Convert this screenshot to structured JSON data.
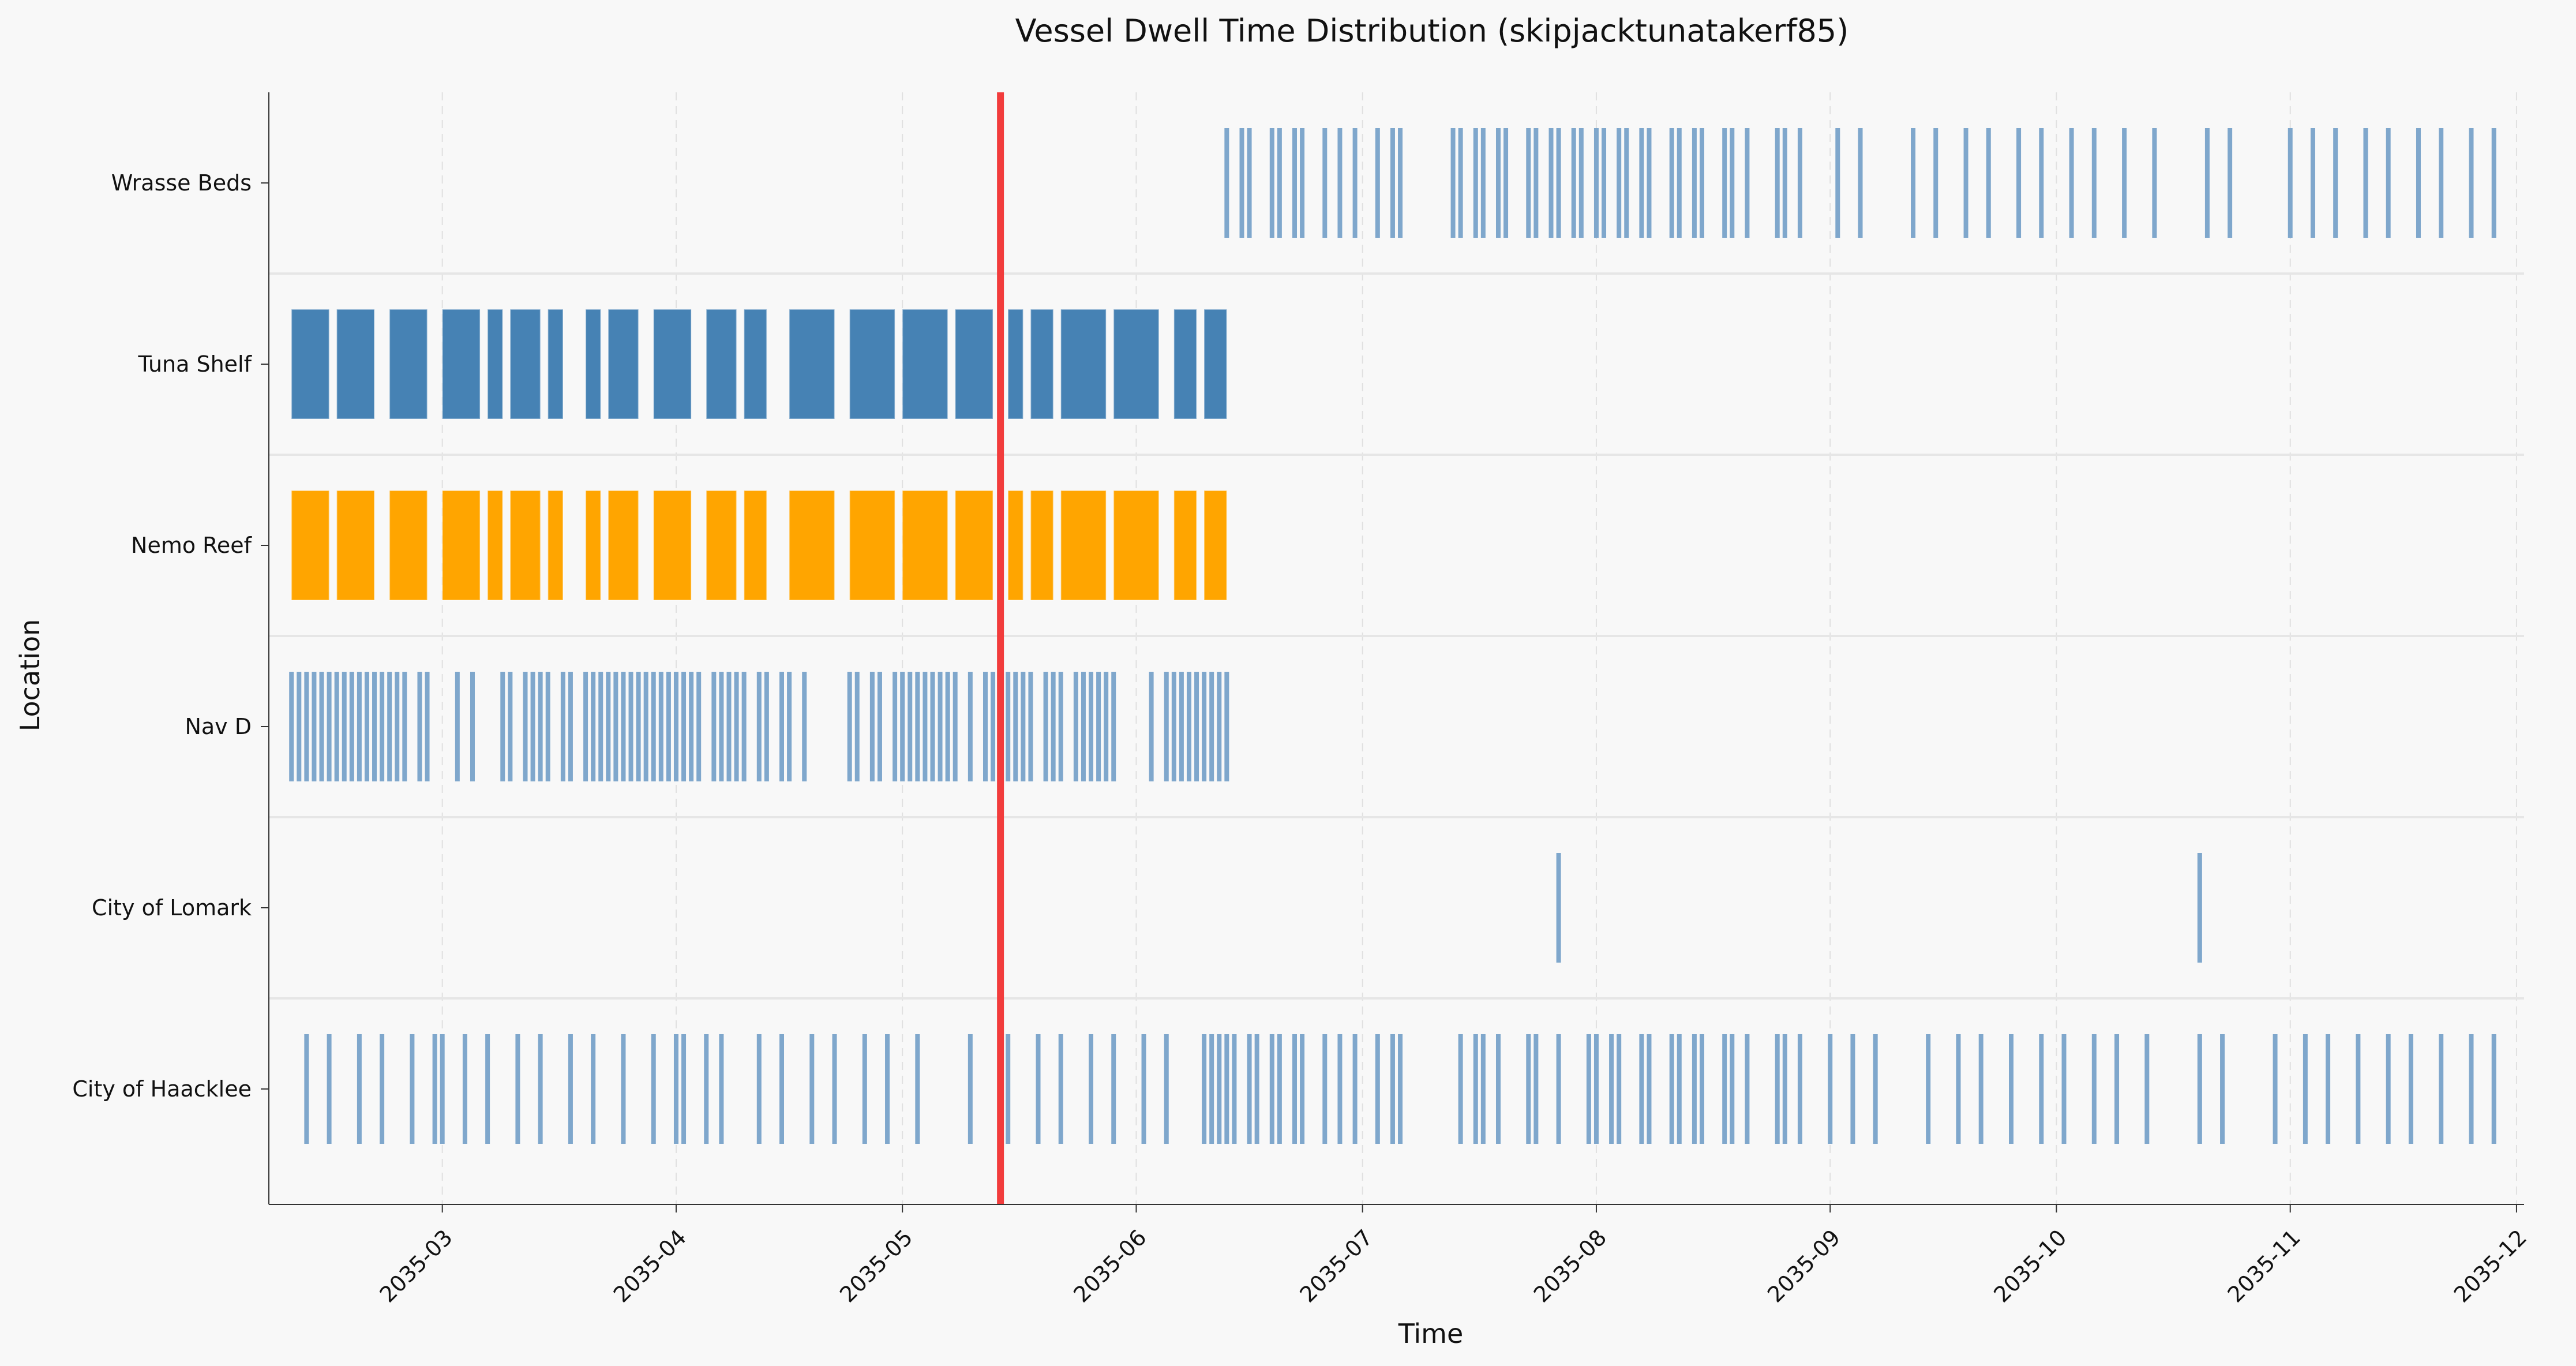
{
  "chart_data": {
    "type": "event-timeline",
    "title": "Vessel Dwell Time Distribution (skipjacktunatakerf85)",
    "xlabel": "Time",
    "ylabel": "Location",
    "x_tick_labels": [
      "2035-03",
      "2035-04",
      "2035-05",
      "2035-06",
      "2035-07",
      "2035-08",
      "2035-09",
      "2035-10",
      "2035-11",
      "2035-12"
    ],
    "x_range": [
      "2035-02-06",
      "2035-12-02"
    ],
    "y_categories": [
      "Wrasse Beds",
      "Tuna Shelf",
      "Nemo Reef",
      "Nav D",
      "City of Lomark",
      "City of Haacklee"
    ],
    "grid": true,
    "colors": {
      "event": "#7fa7cc",
      "tuna": "#4682b4",
      "nemo": "#ffa500",
      "marker": "#f23c3c",
      "separator": "#e6e6e6",
      "grid": "#e0e0e0"
    },
    "marker_line_date": "2035-05-14",
    "series": [
      {
        "location": "Wrasse Beds",
        "events": [
          "2035-06-13",
          "2035-06-15",
          "2035-06-16",
          "2035-06-19",
          "2035-06-20",
          "2035-06-22",
          "2035-06-23",
          "2035-06-26",
          "2035-06-28",
          "2035-06-30",
          "2035-07-03",
          "2035-07-05",
          "2035-07-06",
          "2035-07-13",
          "2035-07-14",
          "2035-07-16",
          "2035-07-17",
          "2035-07-19",
          "2035-07-20",
          "2035-07-23",
          "2035-07-24",
          "2035-07-26",
          "2035-07-27",
          "2035-07-29",
          "2035-07-30",
          "2035-08-01",
          "2035-08-02",
          "2035-08-04",
          "2035-08-05",
          "2035-08-07",
          "2035-08-08",
          "2035-08-11",
          "2035-08-12",
          "2035-08-14",
          "2035-08-15",
          "2035-08-18",
          "2035-08-19",
          "2035-08-21",
          "2035-08-25",
          "2035-08-26",
          "2035-08-28",
          "2035-09-02",
          "2035-09-05",
          "2035-09-12",
          "2035-09-15",
          "2035-09-19",
          "2035-09-22",
          "2035-09-26",
          "2035-09-29",
          "2035-10-03",
          "2035-10-06",
          "2035-10-10",
          "2035-10-14",
          "2035-10-21",
          "2035-10-24",
          "2035-11-01",
          "2035-11-04",
          "2035-11-07",
          "2035-11-11",
          "2035-11-14",
          "2035-11-18",
          "2035-11-21",
          "2035-11-25",
          "2035-11-28"
        ]
      },
      {
        "location": "Tuna Shelf",
        "intervals": [
          [
            "2035-02-09",
            "2035-02-14"
          ],
          [
            "2035-02-15",
            "2035-02-20"
          ],
          [
            "2035-02-22",
            "2035-02-27"
          ],
          [
            "2035-03-01",
            "2035-03-06"
          ],
          [
            "2035-03-07",
            "2035-03-09"
          ],
          [
            "2035-03-10",
            "2035-03-14"
          ],
          [
            "2035-03-15",
            "2035-03-17"
          ],
          [
            "2035-03-20",
            "2035-03-22"
          ],
          [
            "2035-03-23",
            "2035-03-27"
          ],
          [
            "2035-03-29",
            "2035-04-03"
          ],
          [
            "2035-04-05",
            "2035-04-09"
          ],
          [
            "2035-04-10",
            "2035-04-13"
          ],
          [
            "2035-04-16",
            "2035-04-22"
          ],
          [
            "2035-04-24",
            "2035-04-30"
          ],
          [
            "2035-05-01",
            "2035-05-07"
          ],
          [
            "2035-05-08",
            "2035-05-13"
          ],
          [
            "2035-05-15",
            "2035-05-17"
          ],
          [
            "2035-05-18",
            "2035-05-21"
          ],
          [
            "2035-05-22",
            "2035-05-28"
          ],
          [
            "2035-05-29",
            "2035-06-04"
          ],
          [
            "2035-06-06",
            "2035-06-09"
          ],
          [
            "2035-06-10",
            "2035-06-13"
          ]
        ]
      },
      {
        "location": "Nemo Reef",
        "intervals": [
          [
            "2035-02-09",
            "2035-02-14"
          ],
          [
            "2035-02-15",
            "2035-02-20"
          ],
          [
            "2035-02-22",
            "2035-02-27"
          ],
          [
            "2035-03-01",
            "2035-03-06"
          ],
          [
            "2035-03-07",
            "2035-03-09"
          ],
          [
            "2035-03-10",
            "2035-03-14"
          ],
          [
            "2035-03-15",
            "2035-03-17"
          ],
          [
            "2035-03-20",
            "2035-03-22"
          ],
          [
            "2035-03-23",
            "2035-03-27"
          ],
          [
            "2035-03-29",
            "2035-04-03"
          ],
          [
            "2035-04-05",
            "2035-04-09"
          ],
          [
            "2035-04-10",
            "2035-04-13"
          ],
          [
            "2035-04-16",
            "2035-04-22"
          ],
          [
            "2035-04-24",
            "2035-04-30"
          ],
          [
            "2035-05-01",
            "2035-05-07"
          ],
          [
            "2035-05-08",
            "2035-05-13"
          ],
          [
            "2035-05-15",
            "2035-05-17"
          ],
          [
            "2035-05-18",
            "2035-05-21"
          ],
          [
            "2035-05-22",
            "2035-05-28"
          ],
          [
            "2035-05-29",
            "2035-06-04"
          ],
          [
            "2035-06-06",
            "2035-06-09"
          ],
          [
            "2035-06-10",
            "2035-06-13"
          ]
        ]
      },
      {
        "location": "Nav D",
        "events": [
          "2035-02-09",
          "2035-02-10",
          "2035-02-11",
          "2035-02-12",
          "2035-02-13",
          "2035-02-14",
          "2035-02-15",
          "2035-02-16",
          "2035-02-17",
          "2035-02-18",
          "2035-02-19",
          "2035-02-20",
          "2035-02-21",
          "2035-02-22",
          "2035-02-23",
          "2035-02-24",
          "2035-02-26",
          "2035-02-27",
          "2035-03-03",
          "2035-03-05",
          "2035-03-09",
          "2035-03-10",
          "2035-03-12",
          "2035-03-13",
          "2035-03-14",
          "2035-03-15",
          "2035-03-17",
          "2035-03-18",
          "2035-03-20",
          "2035-03-21",
          "2035-03-22",
          "2035-03-23",
          "2035-03-24",
          "2035-03-25",
          "2035-03-26",
          "2035-03-27",
          "2035-03-28",
          "2035-03-29",
          "2035-03-30",
          "2035-03-31",
          "2035-04-01",
          "2035-04-02",
          "2035-04-03",
          "2035-04-04",
          "2035-04-06",
          "2035-04-07",
          "2035-04-08",
          "2035-04-09",
          "2035-04-10",
          "2035-04-12",
          "2035-04-13",
          "2035-04-15",
          "2035-04-16",
          "2035-04-18",
          "2035-04-24",
          "2035-04-25",
          "2035-04-27",
          "2035-04-28",
          "2035-04-30",
          "2035-05-01",
          "2035-05-02",
          "2035-05-03",
          "2035-05-04",
          "2035-05-05",
          "2035-05-06",
          "2035-05-07",
          "2035-05-08",
          "2035-05-10",
          "2035-05-12",
          "2035-05-13",
          "2035-05-14",
          "2035-05-15",
          "2035-05-16",
          "2035-05-17",
          "2035-05-18",
          "2035-05-20",
          "2035-05-21",
          "2035-05-22",
          "2035-05-24",
          "2035-05-25",
          "2035-05-26",
          "2035-05-27",
          "2035-05-28",
          "2035-05-29",
          "2035-06-03",
          "2035-06-05",
          "2035-06-06",
          "2035-06-07",
          "2035-06-08",
          "2035-06-09",
          "2035-06-10",
          "2035-06-11",
          "2035-06-12",
          "2035-06-13"
        ]
      },
      {
        "location": "City of Lomark",
        "events": [
          "2035-07-27",
          "2035-10-20"
        ]
      },
      {
        "location": "City of Haacklee",
        "events": [
          "2035-02-11",
          "2035-02-14",
          "2035-02-18",
          "2035-02-21",
          "2035-02-25",
          "2035-02-28",
          "2035-03-01",
          "2035-03-04",
          "2035-03-07",
          "2035-03-11",
          "2035-03-14",
          "2035-03-18",
          "2035-03-21",
          "2035-03-25",
          "2035-03-29",
          "2035-04-01",
          "2035-04-02",
          "2035-04-05",
          "2035-04-07",
          "2035-04-12",
          "2035-04-15",
          "2035-04-19",
          "2035-04-22",
          "2035-04-26",
          "2035-04-29",
          "2035-05-03",
          "2035-05-10",
          "2035-05-15",
          "2035-05-19",
          "2035-05-22",
          "2035-05-26",
          "2035-05-29",
          "2035-06-02",
          "2035-06-05",
          "2035-06-10",
          "2035-06-11",
          "2035-06-12",
          "2035-06-13",
          "2035-06-14",
          "2035-06-16",
          "2035-06-17",
          "2035-06-19",
          "2035-06-20",
          "2035-06-22",
          "2035-06-23",
          "2035-06-26",
          "2035-06-28",
          "2035-06-30",
          "2035-07-03",
          "2035-07-05",
          "2035-07-06",
          "2035-07-14",
          "2035-07-16",
          "2035-07-17",
          "2035-07-19",
          "2035-07-23",
          "2035-07-24",
          "2035-07-27",
          "2035-07-31",
          "2035-08-01",
          "2035-08-03",
          "2035-08-04",
          "2035-08-07",
          "2035-08-08",
          "2035-08-11",
          "2035-08-12",
          "2035-08-14",
          "2035-08-15",
          "2035-08-18",
          "2035-08-19",
          "2035-08-21",
          "2035-08-25",
          "2035-08-26",
          "2035-08-28",
          "2035-09-01",
          "2035-09-04",
          "2035-09-07",
          "2035-09-14",
          "2035-09-18",
          "2035-09-21",
          "2035-09-25",
          "2035-09-29",
          "2035-10-02",
          "2035-10-06",
          "2035-10-09",
          "2035-10-13",
          "2035-10-20",
          "2035-10-23",
          "2035-10-30",
          "2035-11-03",
          "2035-11-06",
          "2035-11-10",
          "2035-11-14",
          "2035-11-17",
          "2035-11-21",
          "2035-11-25",
          "2035-11-28"
        ]
      }
    ]
  }
}
